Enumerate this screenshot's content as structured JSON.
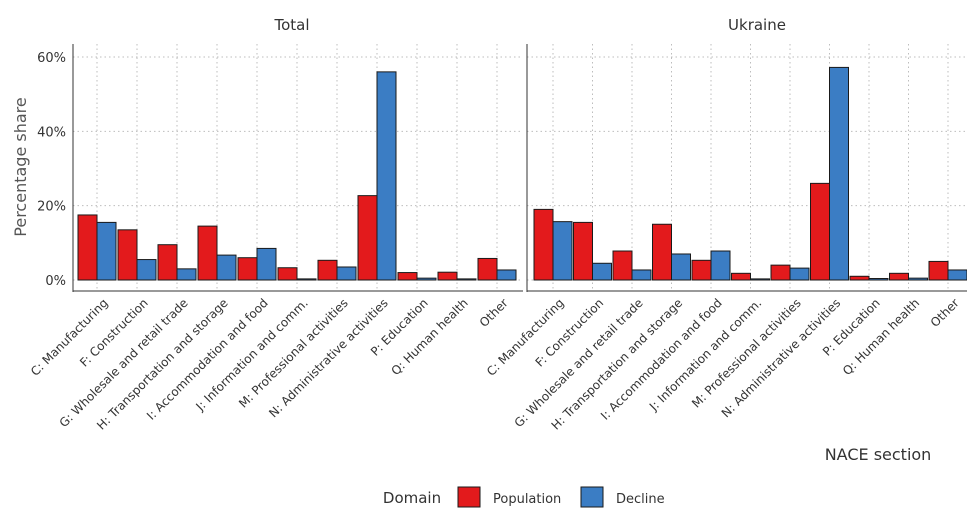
{
  "chart_data": {
    "type": "bar",
    "panels": [
      "Total",
      "Ukraine"
    ],
    "categories": [
      "C: Manufacturing",
      "F: Construction",
      "G: Wholesale and retail trade",
      "H: Transportation and storage",
      "I: Accommodation and food",
      "J: Information and comm.",
      "M: Professional activities",
      "N: Administrative activities",
      "P: Education",
      "Q: Human health",
      "Other"
    ],
    "series": [
      {
        "name": "Population",
        "color": "#e31a1c",
        "values": {
          "Total": [
            17.5,
            13.5,
            9.5,
            14.5,
            6.0,
            3.3,
            5.3,
            22.7,
            2.0,
            2.1,
            5.8
          ],
          "Ukraine": [
            19.0,
            15.5,
            7.8,
            15.0,
            5.3,
            1.8,
            4.0,
            26.0,
            1.0,
            1.8,
            5.0
          ]
        }
      },
      {
        "name": "Decline",
        "color": "#3b7dc4",
        "values": {
          "Total": [
            15.5,
            5.5,
            3.0,
            6.7,
            8.5,
            0.3,
            3.5,
            56.0,
            0.5,
            0.3,
            2.7
          ],
          "Ukraine": [
            15.7,
            4.5,
            2.7,
            7.0,
            7.8,
            0.3,
            3.2,
            57.2,
            0.4,
            0.5,
            2.7
          ]
        }
      }
    ],
    "ylabel": "Percentage share",
    "xlabel": "NACE section",
    "ylim": [
      0,
      62
    ],
    "yticks": [
      "0%",
      "20%",
      "40%",
      "60%"
    ],
    "legend": {
      "title": "Domain",
      "labels": [
        "Population",
        "Decline"
      ],
      "position": "bottom"
    },
    "grid": true
  }
}
